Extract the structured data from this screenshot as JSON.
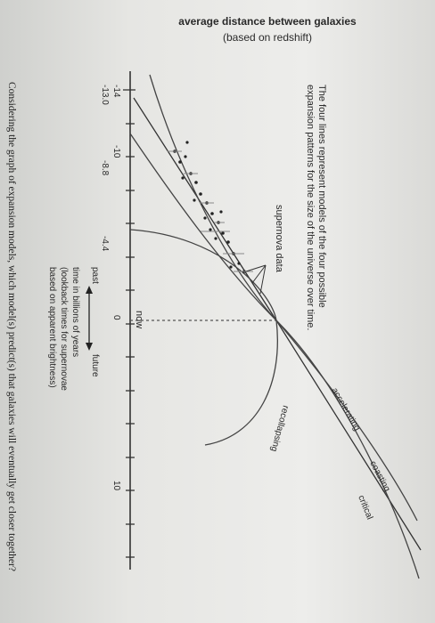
{
  "figure": {
    "yaxis_title_line1": "average distance between galaxies",
    "yaxis_title_line2": "(based on redshift)",
    "caption_line1": "The four lines represent models of the four possible",
    "caption_line2": "expansion patterns for the size of the universe over time.",
    "supernova_label": "supernova data",
    "now_label": "now",
    "past_label": "past",
    "future_label": "future",
    "xaxis_line1": "time in billions of years",
    "xaxis_line2": "(lookback times for supernovae",
    "xaxis_line3": "based on apparent brightness)",
    "ticks_top_row": [
      "-14",
      "-10",
      "0",
      "10"
    ],
    "ticks_second_row": [
      "-13.0",
      "-8.8",
      "-4.4"
    ],
    "models": [
      "accelerating",
      "coasting",
      "critical",
      "recollapsing"
    ]
  },
  "question": {
    "text": "Considering the graph of expansion models, which model(s) predict(s) that galaxies will eventually get closer together?"
  },
  "colors": {
    "line": "#333333",
    "text": "#2a2a2a",
    "background": "#e8e8e5"
  }
}
